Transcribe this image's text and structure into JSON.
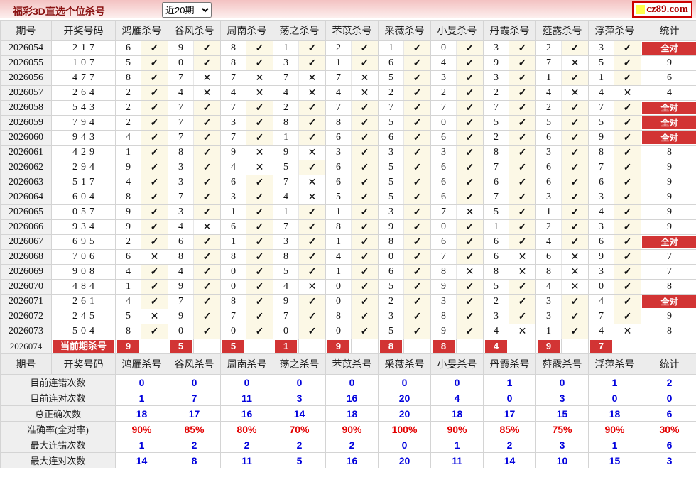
{
  "header": {
    "title": "福彩3D直选个位杀号",
    "range_select": {
      "value": "近20期"
    },
    "logo": {
      "text": "cz89.com",
      "icon": "yellow-square-icon"
    }
  },
  "icons": {
    "check": "✓",
    "cross": "✕"
  },
  "table": {
    "columns": {
      "period": "期号",
      "number": "开奖号码",
      "stat": "统计"
    },
    "experts": [
      "鸿雁杀号",
      "谷风杀号",
      "周南杀号",
      "荡之杀号",
      "芣苡杀号",
      "采薇杀号",
      "小旻杀号",
      "丹霞杀号",
      "薤露杀号",
      "浮萍杀号"
    ],
    "all_correct_label": "全对",
    "rows": [
      {
        "period": "2026054",
        "number": "217",
        "kills": [
          6,
          9,
          8,
          1,
          2,
          1,
          0,
          3,
          2,
          3
        ],
        "marks": [
          1,
          1,
          1,
          1,
          1,
          1,
          1,
          1,
          1,
          1
        ],
        "stat": "全对"
      },
      {
        "period": "2026055",
        "number": "107",
        "kills": [
          5,
          0,
          8,
          3,
          1,
          6,
          4,
          9,
          7,
          5
        ],
        "marks": [
          1,
          1,
          1,
          1,
          1,
          1,
          1,
          1,
          0,
          1
        ],
        "stat": "9"
      },
      {
        "period": "2026056",
        "number": "477",
        "kills": [
          8,
          7,
          7,
          7,
          7,
          5,
          3,
          3,
          1,
          1
        ],
        "marks": [
          1,
          0,
          0,
          0,
          0,
          1,
          1,
          1,
          1,
          1
        ],
        "stat": "6"
      },
      {
        "period": "2026057",
        "number": "264",
        "kills": [
          2,
          4,
          4,
          4,
          4,
          2,
          2,
          2,
          4,
          4
        ],
        "marks": [
          1,
          0,
          0,
          0,
          0,
          1,
          1,
          1,
          0,
          0
        ],
        "stat": "4"
      },
      {
        "period": "2026058",
        "number": "543",
        "kills": [
          2,
          7,
          7,
          2,
          7,
          7,
          7,
          7,
          2,
          7
        ],
        "marks": [
          1,
          1,
          1,
          1,
          1,
          1,
          1,
          1,
          1,
          1
        ],
        "stat": "全对"
      },
      {
        "period": "2026059",
        "number": "794",
        "kills": [
          2,
          7,
          3,
          8,
          8,
          5,
          0,
          5,
          5,
          5
        ],
        "marks": [
          1,
          1,
          1,
          1,
          1,
          1,
          1,
          1,
          1,
          1
        ],
        "stat": "全对"
      },
      {
        "period": "2026060",
        "number": "943",
        "kills": [
          4,
          7,
          7,
          1,
          6,
          6,
          6,
          2,
          6,
          9
        ],
        "marks": [
          1,
          1,
          1,
          1,
          1,
          1,
          1,
          1,
          1,
          1
        ],
        "stat": "全对"
      },
      {
        "period": "2026061",
        "number": "429",
        "kills": [
          1,
          8,
          9,
          9,
          3,
          3,
          3,
          8,
          3,
          8
        ],
        "marks": [
          1,
          1,
          0,
          0,
          1,
          1,
          1,
          1,
          1,
          1
        ],
        "stat": "8"
      },
      {
        "period": "2026062",
        "number": "294",
        "kills": [
          9,
          3,
          4,
          5,
          6,
          5,
          6,
          7,
          6,
          7
        ],
        "marks": [
          1,
          1,
          0,
          1,
          1,
          1,
          1,
          1,
          1,
          1
        ],
        "stat": "9"
      },
      {
        "period": "2026063",
        "number": "517",
        "kills": [
          4,
          3,
          6,
          7,
          6,
          5,
          6,
          6,
          6,
          6
        ],
        "marks": [
          1,
          1,
          1,
          0,
          1,
          1,
          1,
          1,
          1,
          1
        ],
        "stat": "9"
      },
      {
        "period": "2026064",
        "number": "604",
        "kills": [
          8,
          7,
          3,
          4,
          5,
          5,
          6,
          7,
          3,
          3
        ],
        "marks": [
          1,
          1,
          1,
          0,
          1,
          1,
          1,
          1,
          1,
          1
        ],
        "stat": "9"
      },
      {
        "period": "2026065",
        "number": "057",
        "kills": [
          9,
          3,
          1,
          1,
          1,
          3,
          7,
          5,
          1,
          4
        ],
        "marks": [
          1,
          1,
          1,
          1,
          1,
          1,
          0,
          1,
          1,
          1
        ],
        "stat": "9"
      },
      {
        "period": "2026066",
        "number": "934",
        "kills": [
          9,
          4,
          6,
          7,
          8,
          9,
          0,
          1,
          2,
          3
        ],
        "marks": [
          1,
          0,
          1,
          1,
          1,
          1,
          1,
          1,
          1,
          1
        ],
        "stat": "9"
      },
      {
        "period": "2026067",
        "number": "695",
        "kills": [
          2,
          6,
          1,
          3,
          1,
          8,
          6,
          6,
          4,
          6
        ],
        "marks": [
          1,
          1,
          1,
          1,
          1,
          1,
          1,
          1,
          1,
          1
        ],
        "stat": "全对"
      },
      {
        "period": "2026068",
        "number": "706",
        "kills": [
          6,
          8,
          8,
          8,
          4,
          0,
          7,
          6,
          6,
          9
        ],
        "marks": [
          0,
          1,
          1,
          1,
          1,
          1,
          1,
          0,
          0,
          1
        ],
        "stat": "7"
      },
      {
        "period": "2026069",
        "number": "908",
        "kills": [
          4,
          4,
          0,
          5,
          1,
          6,
          8,
          8,
          8,
          3
        ],
        "marks": [
          1,
          1,
          1,
          1,
          1,
          1,
          0,
          0,
          0,
          1
        ],
        "stat": "7"
      },
      {
        "period": "2026070",
        "number": "484",
        "kills": [
          1,
          9,
          0,
          4,
          0,
          5,
          9,
          5,
          4,
          0
        ],
        "marks": [
          1,
          1,
          1,
          0,
          1,
          1,
          1,
          1,
          0,
          1
        ],
        "stat": "8"
      },
      {
        "period": "2026071",
        "number": "261",
        "kills": [
          4,
          7,
          8,
          9,
          0,
          2,
          3,
          2,
          3,
          4
        ],
        "marks": [
          1,
          1,
          1,
          1,
          1,
          1,
          1,
          1,
          1,
          1
        ],
        "stat": "全对"
      },
      {
        "period": "2026072",
        "number": "245",
        "kills": [
          5,
          9,
          7,
          7,
          8,
          3,
          8,
          3,
          3,
          7
        ],
        "marks": [
          0,
          1,
          1,
          1,
          1,
          1,
          1,
          1,
          1,
          1
        ],
        "stat": "9"
      },
      {
        "period": "2026073",
        "number": "504",
        "kills": [
          8,
          0,
          0,
          0,
          0,
          5,
          9,
          4,
          1,
          4
        ],
        "marks": [
          1,
          1,
          1,
          1,
          1,
          1,
          1,
          0,
          1,
          0
        ],
        "stat": "8"
      }
    ],
    "current_row": {
      "period": "2026074",
      "label": "当前期杀号",
      "kills": [
        9,
        5,
        5,
        1,
        9,
        8,
        8,
        4,
        9,
        7
      ],
      "stat": ""
    }
  },
  "summary": {
    "rows": [
      {
        "label": "目前连错次数",
        "style": "blue",
        "values": [
          "0",
          "0",
          "0",
          "0",
          "0",
          "0",
          "0",
          "1",
          "0",
          "1",
          "2"
        ]
      },
      {
        "label": "目前连对次数",
        "style": "blue",
        "values": [
          "1",
          "7",
          "11",
          "3",
          "16",
          "20",
          "4",
          "0",
          "3",
          "0",
          "0"
        ]
      },
      {
        "label": "总正确次数",
        "style": "blue",
        "values": [
          "18",
          "17",
          "16",
          "14",
          "18",
          "20",
          "18",
          "17",
          "15",
          "18",
          "6"
        ]
      },
      {
        "label": "准确率(全对率)",
        "style": "red",
        "values": [
          "90%",
          "85%",
          "80%",
          "70%",
          "90%",
          "100%",
          "90%",
          "85%",
          "75%",
          "90%",
          "30%"
        ]
      },
      {
        "label": "最大连错次数",
        "style": "blue",
        "values": [
          "1",
          "2",
          "2",
          "2",
          "2",
          "0",
          "1",
          "2",
          "3",
          "1",
          "6"
        ]
      },
      {
        "label": "最大连对次数",
        "style": "blue",
        "values": [
          "14",
          "8",
          "11",
          "5",
          "16",
          "20",
          "11",
          "14",
          "10",
          "15",
          "3"
        ]
      }
    ]
  },
  "colors": {
    "accent_red": "#d23434",
    "draw_number_red": "#e03434",
    "check_red": "#c5242c",
    "cross_gray": "#9a9a9a",
    "summary_blue": "#0202dd",
    "summary_red": "#e30000",
    "topbar_pink": "#f3c2c2",
    "logo_yellow": "#ffff4d"
  }
}
